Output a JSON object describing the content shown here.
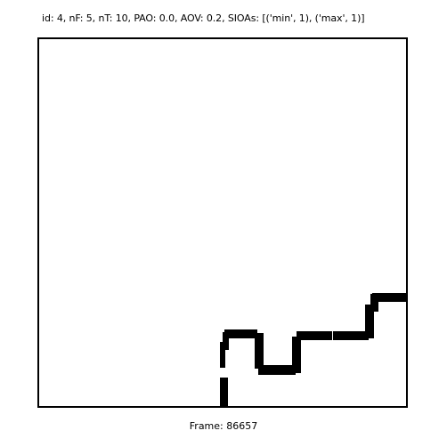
{
  "header": {
    "info_text": "id: 4, nF: 5, nT: 10, PAO: 0.0, AOV: 0.2, SIOAs: [('min', 1), ('max', 1)]"
  },
  "footer": {
    "frame_text": "Frame: 86657"
  },
  "colors": {
    "background": "#ffffff",
    "border": "#000000",
    "path": "#000000"
  }
}
